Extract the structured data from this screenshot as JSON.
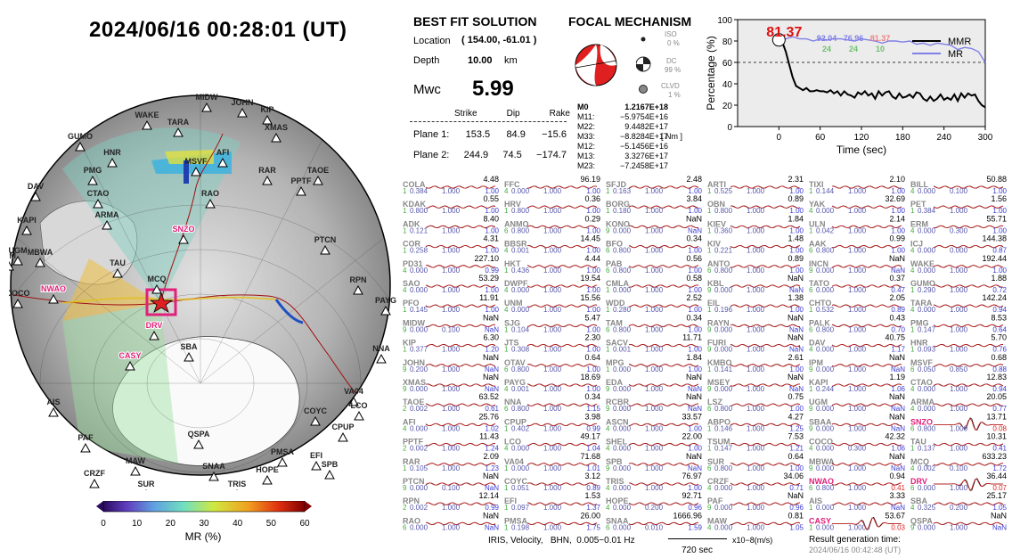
{
  "header": {
    "timestamp": "2024/06/16  00:28:01 (UT)"
  },
  "solution": {
    "title": "BEST FIT SOLUTION",
    "location_label": "Location",
    "location_value": "( 154.00,  -61.01 )",
    "depth_label": "Depth",
    "depth_value": "10.00",
    "depth_unit": "km",
    "mw_label": "Mwc",
    "mw_value": "5.99",
    "plane_headers": [
      "Strike",
      "Dip",
      "Rake"
    ],
    "plane1_label": "Plane 1:",
    "plane1_values": [
      "153.5",
      "84.9",
      "−15.6"
    ],
    "plane2_label": "Plane 2:",
    "plane2_values": [
      "244.9",
      "74.5",
      "−174.7"
    ]
  },
  "focal": {
    "title": "FOCAL MECHANISM",
    "iso_label": "ISO",
    "iso_value": "0 %",
    "dc_label": "DC",
    "dc_value": "99 %",
    "clvd_label": "CLVD",
    "clvd_value": "1 %",
    "tensor_unit": "[ Nm ]",
    "tensor": [
      {
        "k": "M0",
        "v": "1.2167E+18"
      },
      {
        "k": "M11:",
        "v": "−5.9754E+16"
      },
      {
        "k": "M22:",
        "v": "9.4482E+17"
      },
      {
        "k": "M33:",
        "v": "−8.8284E+17"
      },
      {
        "k": "M12:",
        "v": "−5.1456E+16"
      },
      {
        "k": "M13:",
        "v": "3.3276E+17"
      },
      {
        "k": "M23:",
        "v": "−7.2458E+17"
      }
    ]
  },
  "chart_data": {
    "type": "line",
    "xlabel": "Time (sec)",
    "ylabel": "Percentage (%)",
    "xlim": [
      -60,
      300
    ],
    "ylim": [
      0,
      100
    ],
    "xticks": [
      "0",
      "60",
      "120",
      "180",
      "240",
      "300"
    ],
    "yticks": [
      "0",
      "20",
      "40",
      "60",
      "80",
      "100"
    ],
    "threshold": 60,
    "marker_label": "81.37",
    "legend": [
      "MMR",
      "MR"
    ],
    "annotations_top": [
      "92.04",
      "76.96",
      "81.37"
    ],
    "annotations_bottom": [
      "24",
      "24",
      "10"
    ],
    "series": [
      {
        "name": "MMR",
        "color": "#000000",
        "x": [
          0,
          5,
          10,
          15,
          20,
          25,
          30,
          35,
          40,
          45,
          50,
          55,
          60,
          65,
          70,
          75,
          80,
          85,
          90,
          95,
          100,
          105,
          110,
          115,
          120,
          125,
          130,
          135,
          140,
          145,
          150,
          155,
          160,
          165,
          170,
          175,
          180,
          185,
          190,
          195,
          200,
          205,
          210,
          215,
          220,
          225,
          230,
          235,
          240,
          245,
          250,
          255,
          260,
          265,
          270,
          275,
          280,
          285,
          290,
          295,
          300
        ],
        "y": [
          81,
          79,
          70,
          58,
          46,
          38,
          36,
          34,
          36,
          33,
          33,
          34,
          33,
          33,
          32,
          34,
          31,
          33,
          29,
          33,
          30,
          29,
          27,
          32,
          30,
          33,
          29,
          31,
          26,
          33,
          29,
          32,
          33,
          28,
          26,
          31,
          27,
          28,
          30,
          27,
          32,
          31,
          26,
          24,
          28,
          24,
          26,
          30,
          25,
          27,
          25,
          30,
          24,
          31,
          27,
          31,
          29,
          30,
          24,
          20,
          18
        ]
      },
      {
        "name": "MR",
        "color": "#8080e8",
        "x": [
          0,
          10,
          20,
          30,
          40,
          50,
          60,
          70,
          80,
          90,
          100,
          110,
          120,
          130,
          140,
          150,
          160,
          170,
          180,
          190,
          200,
          210,
          220,
          230,
          240,
          250,
          260,
          270,
          280,
          290,
          300
        ],
        "y": [
          81,
          82,
          84,
          82,
          82,
          80,
          82,
          81,
          82,
          82,
          81,
          80,
          82,
          81,
          80,
          78,
          80,
          80,
          79,
          80,
          77,
          78,
          76,
          78,
          77,
          76,
          72,
          74,
          73,
          70,
          60
        ]
      }
    ]
  },
  "map": {
    "stations": [
      {
        "c": "WAKE"
      },
      {
        "c": "MIDW"
      },
      {
        "c": "JOHN"
      },
      {
        "c": "KIP"
      },
      {
        "c": "TARA"
      },
      {
        "c": "XMAS"
      },
      {
        "c": "GUMO"
      },
      {
        "c": "HNR"
      },
      {
        "c": "AFI"
      },
      {
        "c": "MSVF"
      },
      {
        "c": "PMG"
      },
      {
        "c": "RAR"
      },
      {
        "c": "PPTF"
      },
      {
        "c": "TAOE"
      },
      {
        "c": "DAV"
      },
      {
        "c": "CTAO"
      },
      {
        "c": "RAO"
      },
      {
        "c": "ARMA"
      },
      {
        "c": "KAPI"
      },
      {
        "c": "SNZO",
        "hl": true
      },
      {
        "c": "PTCN"
      },
      {
        "c": "UGM"
      },
      {
        "c": "MBWA"
      },
      {
        "c": "IPM"
      },
      {
        "c": "TAU"
      },
      {
        "c": "RPN"
      },
      {
        "c": "NWAO",
        "hl": true
      },
      {
        "c": "MCQ"
      },
      {
        "c": "PAYG"
      },
      {
        "c": "COCO"
      },
      {
        "c": "DRV",
        "hl": true
      },
      {
        "c": "SBA"
      },
      {
        "c": "NNA"
      },
      {
        "c": "CASY",
        "hl": true
      },
      {
        "c": "AIS"
      },
      {
        "c": "QSPA"
      },
      {
        "c": "VA04"
      },
      {
        "c": "LCO"
      },
      {
        "c": "COYC"
      },
      {
        "c": "CPUP"
      },
      {
        "c": "PAF"
      },
      {
        "c": "PMSA"
      },
      {
        "c": "EFI"
      },
      {
        "c": "SPB"
      },
      {
        "c": "MAW"
      },
      {
        "c": "CRZF"
      },
      {
        "c": "SNAA"
      },
      {
        "c": "HOPE"
      },
      {
        "c": "SUR"
      },
      {
        "c": "TRIS"
      }
    ],
    "colorbar_ticks": [
      "0",
      "10",
      "20",
      "30",
      "40",
      "50",
      "60"
    ],
    "colorbar_label": "MR (%)"
  },
  "waveforms": {
    "rows": [
      [
        "COLA",
        "4.48",
        "1",
        "0.384",
        "1.000",
        "1.00",
        "FFC",
        "96.19",
        "4",
        "0.000",
        "1.000",
        "1.00",
        "SFJD",
        "2.48",
        "1",
        "0.163",
        "1.000",
        "1.00",
        "ARTI",
        "2.31",
        "1",
        "0.525",
        "1.000",
        "1.00",
        "TIXI",
        "2.10",
        "1",
        "0.144",
        "1.000",
        "1.00",
        "BILL",
        "50.88",
        "4",
        "0.000",
        "0.100",
        "1.00"
      ],
      [
        "KDAK",
        "0.55",
        "1",
        "0.800",
        "1.000",
        "1.00",
        "HRV",
        "0.36",
        "1",
        "0.800",
        "1.000",
        "1.00",
        "BORG",
        "3.84",
        "1",
        "0.180",
        "1.000",
        "1.00",
        "OBN",
        "0.89",
        "1",
        "0.800",
        "1.000",
        "1.00",
        "YAK",
        "32.69",
        "4",
        "0.000",
        "1.000",
        "1.00",
        "PET",
        "1.56",
        "1",
        "0.384",
        "1.000",
        "1.00"
      ],
      [
        "ADK",
        "8.40",
        "1",
        "0.121",
        "1.000",
        "1.00",
        "ANMO",
        "0.29",
        "6",
        "0.800",
        "1.000",
        "1.00",
        "KONO",
        "NaN",
        "9",
        "0.000",
        "1.000",
        "NaN",
        "KIEV",
        "1.84",
        "1",
        "0.360",
        "1.000",
        "1.00",
        "ULN",
        "2.14",
        "1",
        "0.042",
        "1.000",
        "1.00",
        "ERM",
        "55.71",
        "4",
        "0.000",
        "0.300",
        "1.00"
      ],
      [
        "COR",
        "4.31",
        "1",
        "0.258",
        "1.000",
        "1.00",
        "BBSR",
        "14.45",
        "4",
        "0.001",
        "1.000",
        "1.00",
        "BFO",
        "0.34",
        "6",
        "0.800",
        "1.000",
        "1.00",
        "KIV",
        "1.48",
        "1",
        "0.221",
        "1.000",
        "1.00",
        "AAK",
        "0.99",
        "6",
        "0.800",
        "1.000",
        "1.00",
        "ICJ",
        "144.38",
        "4",
        "0.000",
        "0.000",
        "0.87"
      ],
      [
        "PD31",
        "227.10",
        "4",
        "0.000",
        "1.000",
        "0.99",
        "HKT",
        "4.44",
        "1",
        "0.436",
        "1.000",
        "1.00",
        "PAB",
        "0.56",
        "6",
        "0.800",
        "1.000",
        "1.00",
        "ANTO",
        "0.89",
        "6",
        "0.800",
        "1.000",
        "1.00",
        "INCN",
        "NaN",
        "9",
        "0.000",
        "1.000",
        "NaN",
        "WAKE",
        "192.44",
        "4",
        "0.000",
        "1.000",
        "1.00"
      ],
      [
        "SAO",
        "53.29",
        "4",
        "0.000",
        "1.000",
        "1.00",
        "DWPF",
        "19.54",
        "4",
        "0.000",
        "1.000",
        "1.00",
        "CMLA",
        "0.58",
        "1",
        "0.000",
        "1.000",
        "1.00",
        "KBL",
        "NaN",
        "9",
        "0.000",
        "1.000",
        "NaN",
        "TATO",
        "0.37",
        "6",
        "0.000",
        "1.000",
        "0.47",
        "GUMO",
        "1.88",
        "1",
        "0.290",
        "1.000",
        "0.72"
      ],
      [
        "PFO",
        "11.91",
        "1",
        "0.145",
        "1.000",
        "1.00",
        "UNM",
        "15.56",
        "4",
        "0.000",
        "1.000",
        "1.00",
        "WDD",
        "2.52",
        "1",
        "0.280",
        "1.000",
        "1.00",
        "EIL",
        "1.38",
        "1",
        "0.196",
        "1.000",
        "1.00",
        "CHTO",
        "2.05",
        "1",
        "0.532",
        "1.000",
        "0.89",
        "TARA",
        "142.24",
        "4",
        "0.000",
        "1.000",
        "0.94"
      ],
      [
        "MIDW",
        "NaN",
        "9",
        "0.000",
        "0.100",
        "NaN",
        "SJG",
        "5.47",
        "1",
        "0.104",
        "1.000",
        "1.00",
        "TAM",
        "0.34",
        "6",
        "0.800",
        "1.000",
        "1.00",
        "RAYN",
        "NaN",
        "9",
        "0.000",
        "1.000",
        "NaN",
        "PALK",
        "0.43",
        "6",
        "0.800",
        "1.000",
        "0.70",
        "PMG",
        "8.53",
        "1",
        "0.147",
        "1.000",
        "0.64"
      ],
      [
        "KIP",
        "6.30",
        "1",
        "0.377",
        "1.000",
        "1.20",
        "JTS",
        "2.30",
        "1",
        "0.308",
        "1.000",
        "1.00",
        "SACV",
        "11.71",
        "1",
        "0.001",
        "1.000",
        "1.00",
        "FURI",
        "NaN",
        "9",
        "0.000",
        "1.000",
        "NaN",
        "DAV",
        "40.75",
        "4",
        "0.000",
        "1.000",
        "1.17",
        "HNR",
        "5.70",
        "1",
        "0.093",
        "1.000",
        "0.76"
      ],
      [
        "JOHN",
        "NaN",
        "9",
        "0.200",
        "1.000",
        "NaN",
        "OTAV",
        "0.64",
        "6",
        "0.800",
        "1.000",
        "1.00",
        "MPG",
        "1.84",
        "1",
        "0.000",
        "1.000",
        "1.00",
        "KMBO",
        "2.61",
        "1",
        "0.141",
        "1.000",
        "1.00",
        "IPM",
        "NaN",
        "9",
        "0.000",
        "1.000",
        "NaN",
        "MSVF",
        "0.68",
        "6",
        "0.050",
        "0.850",
        "0.88"
      ],
      [
        "XMAS",
        "NaN",
        "9",
        "0.000",
        "1.000",
        "NaN",
        "PAYG",
        "18.69",
        "4",
        "0.001",
        "1.000",
        "1.00",
        "EDA",
        "NaN",
        "9",
        "0.000",
        "1.000",
        "NaN",
        "MSEY",
        "NaN",
        "9",
        "0.000",
        "1.000",
        "NaN",
        "KAPI",
        "1.19",
        "1",
        "0.244",
        "1.000",
        "1.06",
        "CTAO",
        "12.83",
        "4",
        "0.000",
        "1.000",
        "0.94"
      ],
      [
        "TAOE",
        "63.52",
        "2",
        "0.002",
        "1.000",
        "0.61",
        "NNA",
        "0.34",
        "6",
        "0.800",
        "1.000",
        "1.15",
        "RCBR",
        "NaN",
        "9",
        "0.000",
        "1.000",
        "NaN",
        "LSZ",
        "0.75",
        "6",
        "0.800",
        "1.000",
        "1.00",
        "UGM",
        "NaN",
        "9",
        "0.000",
        "1.000",
        "NaN",
        "ARMA",
        "20.05",
        "4",
        "0.000",
        "1.000",
        "0.77"
      ],
      [
        "AFI",
        "25.76",
        "4",
        "0.000",
        "1.000",
        "1.02",
        "CPUP",
        "3.98",
        "1",
        "0.402",
        "1.000",
        "0.99",
        "ASCN",
        "33.57",
        "4",
        "0.000",
        "1.000",
        "1.00",
        "ABPO",
        "4.27",
        "1",
        "0.146",
        "1.000",
        "1.25",
        "SBAA",
        "NaN",
        "9",
        "0.000",
        "1.000",
        "NaN",
        "SNZO",
        "13.71",
        "6",
        "0.800",
        "1.000",
        "0.08"
      ],
      [
        "PPTF",
        "11.43",
        "2",
        "0.002",
        "1.000",
        "1.24",
        "LCO",
        "49.17",
        "4",
        "0.000",
        "1.000",
        "1.04",
        "SHEL",
        "22.00",
        "4",
        "0.000",
        "1.000",
        "1.00",
        "TSUM",
        "7.53",
        "1",
        "0.147",
        "1.000",
        "1.21",
        "COCO",
        "42.32",
        "4",
        "0.000",
        "0.300",
        "1.06",
        "TAU",
        "10.31",
        "1",
        "0.137",
        "1.000",
        "0.41"
      ],
      [
        "RAR",
        "2.09",
        "1",
        "0.105",
        "1.000",
        "1.23",
        "VA04",
        "71.68",
        "1",
        "0.000",
        "1.000",
        "1.01",
        "SPB",
        "NaN",
        "9",
        "0.000",
        "1.000",
        "NaN",
        "SUR",
        "0.64",
        "6",
        "0.800",
        "1.000",
        "1.00",
        "MBWA",
        "NaN",
        "9",
        "0.000",
        "1.000",
        "NaN",
        "MCQ",
        "633.23",
        "4",
        "0.002",
        "0.100",
        "1.72"
      ],
      [
        "PTCN",
        "NaN",
        "9",
        "0.000",
        "0.100",
        "NaN",
        "COYC",
        "3.12",
        "1",
        "0.051",
        "1.000",
        "0.89",
        "TRIS",
        "76.97",
        "4",
        "0.000",
        "1.000",
        "1.00",
        "CRZF",
        "34.06",
        "4",
        "0.000",
        "1.000",
        "0.71",
        "NWAO",
        "0.94",
        "6",
        "0.800",
        "1.000",
        "0.41",
        "DRV",
        "36.44",
        "6",
        "0.000",
        "1.000",
        "0.07"
      ],
      [
        "RPN",
        "12.14",
        "2",
        "0.002",
        "1.000",
        "0.99",
        "EFI",
        "1.53",
        "1",
        "0.097",
        "1.000",
        "1.37",
        "HOPE",
        "92.71",
        "4",
        "0.000",
        "0.200",
        "0.96",
        "PAF",
        "NaN",
        "9",
        "0.000",
        "1.000",
        "0.96",
        "AIS",
        "3.33",
        "1",
        "0.000",
        "1.000",
        "NaN",
        "SBA",
        "25.17",
        "4",
        "0.325",
        "0.200",
        "1.05"
      ],
      [
        "RAO",
        "NaN",
        "6",
        "0.000",
        "1.000",
        "NaN",
        "PMSA",
        "26.00",
        "1",
        "0.198",
        "1.000",
        "1.75",
        "SNAA",
        "1666.96",
        "6",
        "0.000",
        "0.010",
        "1.59",
        "MAW",
        "0.81",
        "4",
        "0.000",
        "1.000",
        "1.05",
        "CASY",
        "53.67",
        "1",
        "0.000",
        "1.000",
        "0.03",
        "QSPA",
        "NaN",
        "9",
        "0.000",
        "1.000",
        "NaN"
      ]
    ],
    "highlight": [
      "SNZO",
      "NWAO",
      "DRV",
      "CASY"
    ],
    "footer_left": "IRIS, Velocity,   BHN,  0.005−0.01 Hz",
    "scale_label": "720 sec",
    "scale_unit": "x10−8(m/s)",
    "result_label": "Result generation time:",
    "result_time": "2024/06/16 00:42:48 (UT)"
  }
}
